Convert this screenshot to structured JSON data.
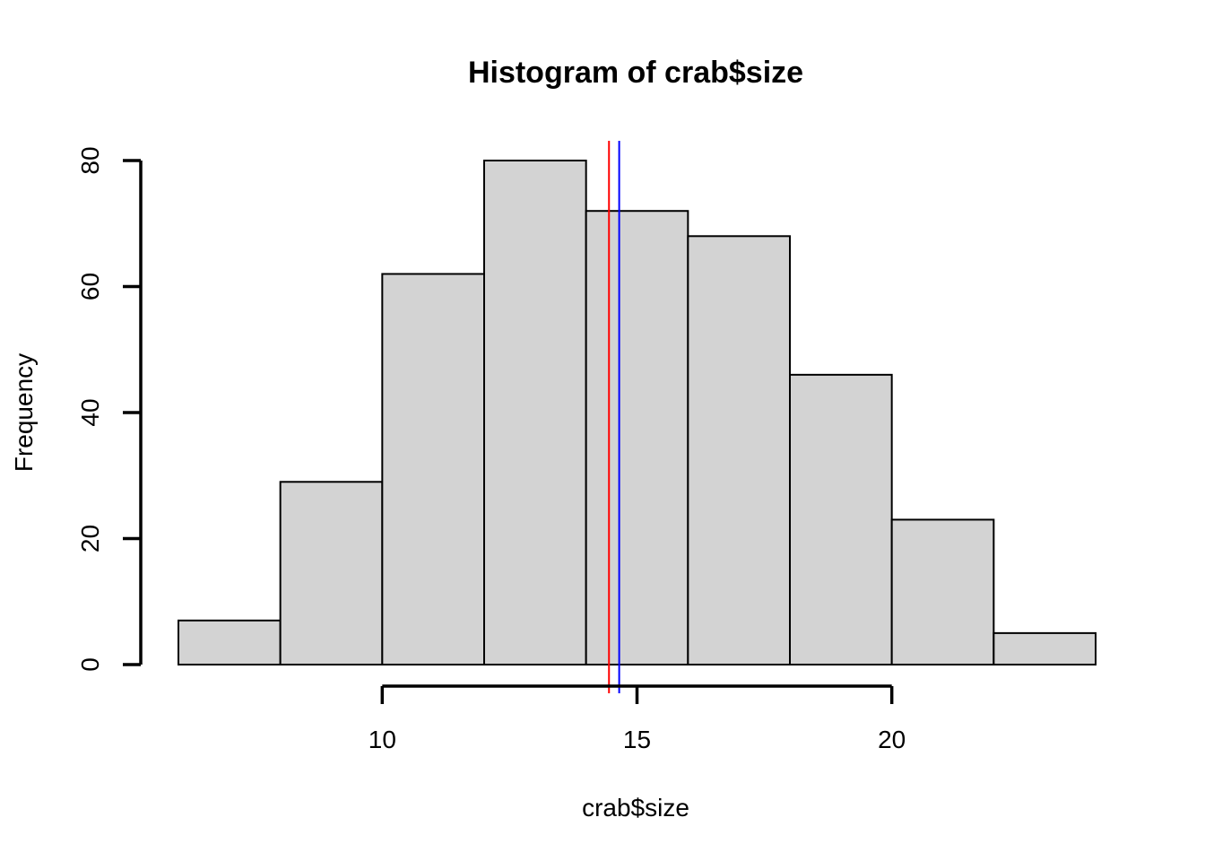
{
  "chart_data": {
    "type": "bar",
    "subtype": "histogram",
    "title": "Histogram of crab$size",
    "xlabel": "crab$size",
    "ylabel": "Frequency",
    "bin_edges": [
      6,
      8,
      10,
      12,
      14,
      16,
      18,
      20,
      22,
      24
    ],
    "values": [
      7,
      29,
      62,
      80,
      72,
      68,
      46,
      23,
      5
    ],
    "xlim": [
      6,
      24
    ],
    "ylim": [
      0,
      80
    ],
    "x_ticks": [
      10,
      15,
      20
    ],
    "y_ticks": [
      0,
      20,
      40,
      60,
      80
    ],
    "vertical_lines": [
      {
        "x": 14.45,
        "color": "#ff0000"
      },
      {
        "x": 14.65,
        "color": "#0000ff"
      }
    ],
    "bar_fill": "#d3d3d3",
    "grid": false
  }
}
